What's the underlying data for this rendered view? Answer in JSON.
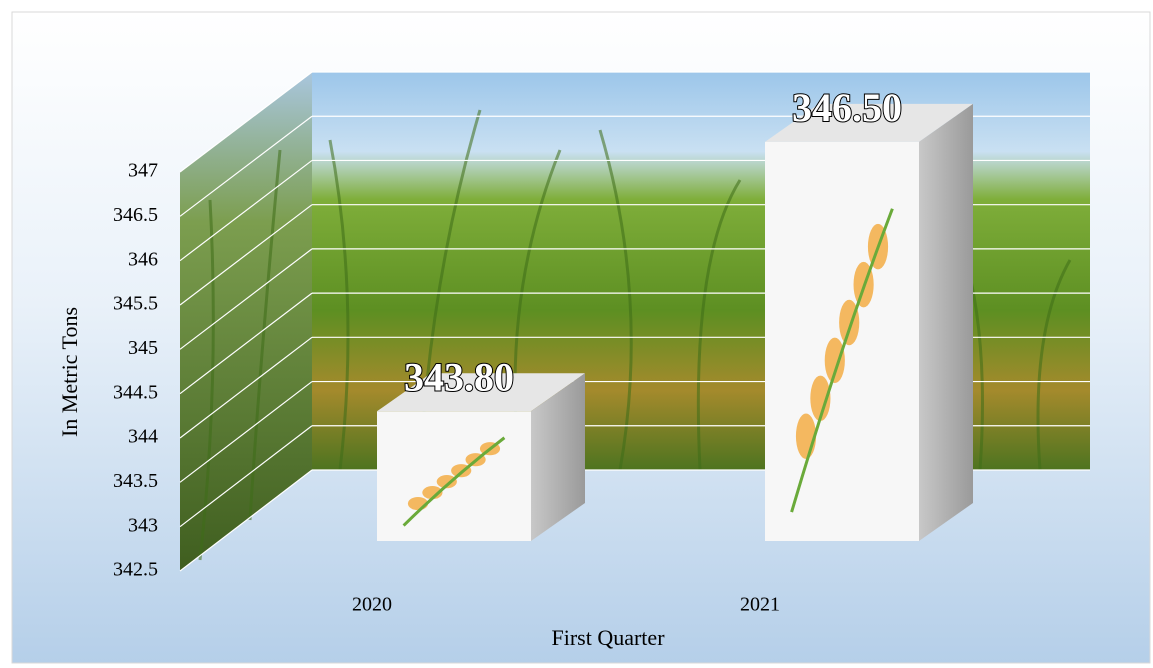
{
  "chart_data": {
    "type": "bar3d",
    "categories": [
      "2020",
      "2021"
    ],
    "values": [
      343.8,
      346.5
    ],
    "value_labels": [
      "343.80",
      "346.50"
    ],
    "x_label": "First Quarter",
    "y_label": "In Metric Tons",
    "ylim": [
      342.5,
      347
    ],
    "yticks": [
      342.5,
      343,
      343.5,
      344,
      344.5,
      345,
      345.5,
      346,
      346.5,
      347
    ],
    "grid": true
  }
}
